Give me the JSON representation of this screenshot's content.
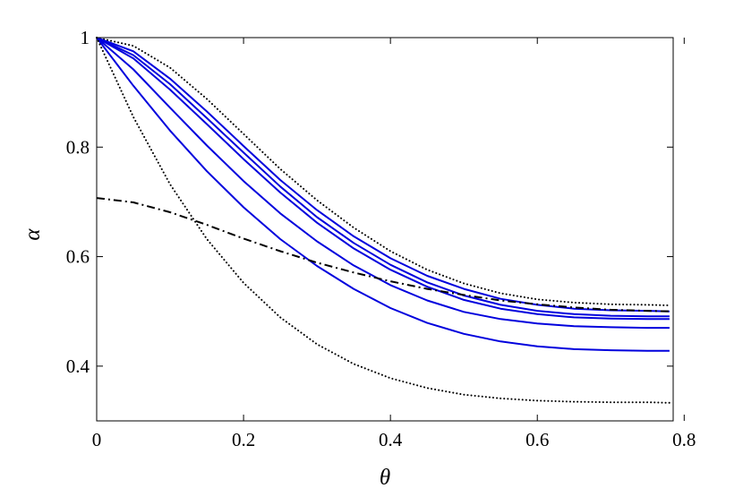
{
  "chart_data": {
    "type": "line",
    "title": "",
    "xlabel": "θ",
    "ylabel": "α",
    "xlim": [
      0,
      0.785
    ],
    "ylim": [
      0.3,
      1.0
    ],
    "xticks": [
      0,
      0.2,
      0.4,
      0.6,
      0.8
    ],
    "xtick_labels": [
      "0",
      "0.2",
      "0.4",
      "0.6",
      "0.8"
    ],
    "yticks": [
      0.4,
      0.6,
      0.8,
      1.0
    ],
    "ytick_labels": [
      "0.4",
      "0.6",
      "0.8",
      "1"
    ],
    "grid": false,
    "legend": "none",
    "series": [
      {
        "style": "dotted",
        "color": "#000000",
        "x": [
          0,
          0.05,
          0.1,
          0.15,
          0.2,
          0.25,
          0.3,
          0.35,
          0.4,
          0.45,
          0.5,
          0.55,
          0.6,
          0.65,
          0.7,
          0.75,
          0.78
        ],
        "y": [
          1.0,
          0.985,
          0.945,
          0.888,
          0.824,
          0.76,
          0.703,
          0.653,
          0.61,
          0.576,
          0.551,
          0.533,
          0.522,
          0.516,
          0.513,
          0.512,
          0.511
        ]
      },
      {
        "style": "solid",
        "color": "#0000dd",
        "x": [
          0,
          0.05,
          0.1,
          0.15,
          0.2,
          0.25,
          0.3,
          0.35,
          0.4,
          0.45,
          0.5,
          0.55,
          0.6,
          0.65,
          0.7,
          0.75,
          0.78
        ],
        "y": [
          1.0,
          0.975,
          0.925,
          0.865,
          0.802,
          0.74,
          0.685,
          0.637,
          0.597,
          0.565,
          0.541,
          0.523,
          0.512,
          0.505,
          0.502,
          0.501,
          0.5
        ]
      },
      {
        "style": "solid",
        "color": "#0000dd",
        "x": [
          0,
          0.05,
          0.1,
          0.15,
          0.2,
          0.25,
          0.3,
          0.35,
          0.4,
          0.45,
          0.5,
          0.55,
          0.6,
          0.65,
          0.7,
          0.75,
          0.78
        ],
        "y": [
          1.0,
          0.968,
          0.915,
          0.853,
          0.79,
          0.728,
          0.672,
          0.625,
          0.585,
          0.553,
          0.529,
          0.512,
          0.501,
          0.495,
          0.492,
          0.491,
          0.491
        ]
      },
      {
        "style": "solid",
        "color": "#0000dd",
        "x": [
          0,
          0.05,
          0.1,
          0.15,
          0.2,
          0.25,
          0.3,
          0.35,
          0.4,
          0.45,
          0.5,
          0.55,
          0.6,
          0.65,
          0.7,
          0.75,
          0.78
        ],
        "y": [
          1.0,
          0.962,
          0.905,
          0.842,
          0.778,
          0.717,
          0.662,
          0.615,
          0.576,
          0.545,
          0.521,
          0.505,
          0.495,
          0.489,
          0.487,
          0.486,
          0.486
        ]
      },
      {
        "style": "solid",
        "color": "#0000dd",
        "x": [
          0,
          0.05,
          0.1,
          0.15,
          0.2,
          0.25,
          0.3,
          0.35,
          0.4,
          0.45,
          0.5,
          0.55,
          0.6,
          0.65,
          0.7,
          0.75,
          0.78
        ],
        "y": [
          1.0,
          0.942,
          0.872,
          0.803,
          0.738,
          0.679,
          0.628,
          0.584,
          0.548,
          0.52,
          0.499,
          0.486,
          0.478,
          0.473,
          0.471,
          0.47,
          0.47
        ]
      },
      {
        "style": "solid",
        "color": "#0000dd",
        "x": [
          0,
          0.05,
          0.1,
          0.15,
          0.2,
          0.25,
          0.3,
          0.35,
          0.4,
          0.45,
          0.5,
          0.55,
          0.6,
          0.65,
          0.7,
          0.75,
          0.78
        ],
        "y": [
          1.0,
          0.912,
          0.83,
          0.756,
          0.69,
          0.632,
          0.583,
          0.541,
          0.506,
          0.479,
          0.459,
          0.445,
          0.436,
          0.431,
          0.429,
          0.428,
          0.428
        ]
      },
      {
        "style": "dashdot",
        "color": "#000000",
        "x": [
          0,
          0.05,
          0.1,
          0.15,
          0.2,
          0.25,
          0.3,
          0.35,
          0.4,
          0.45,
          0.5,
          0.55,
          0.6,
          0.65,
          0.7,
          0.75,
          0.78
        ],
        "y": [
          0.707,
          0.699,
          0.681,
          0.658,
          0.633,
          0.61,
          0.589,
          0.571,
          0.555,
          0.541,
          0.53,
          0.52,
          0.513,
          0.507,
          0.503,
          0.501,
          0.5
        ]
      },
      {
        "style": "dotted",
        "color": "#000000",
        "x": [
          0,
          0.05,
          0.1,
          0.15,
          0.2,
          0.25,
          0.3,
          0.35,
          0.4,
          0.45,
          0.5,
          0.55,
          0.6,
          0.65,
          0.7,
          0.75,
          0.78
        ],
        "y": [
          1.0,
          0.855,
          0.732,
          0.632,
          0.552,
          0.489,
          0.44,
          0.404,
          0.378,
          0.36,
          0.348,
          0.341,
          0.337,
          0.335,
          0.334,
          0.334,
          0.333
        ]
      }
    ]
  }
}
